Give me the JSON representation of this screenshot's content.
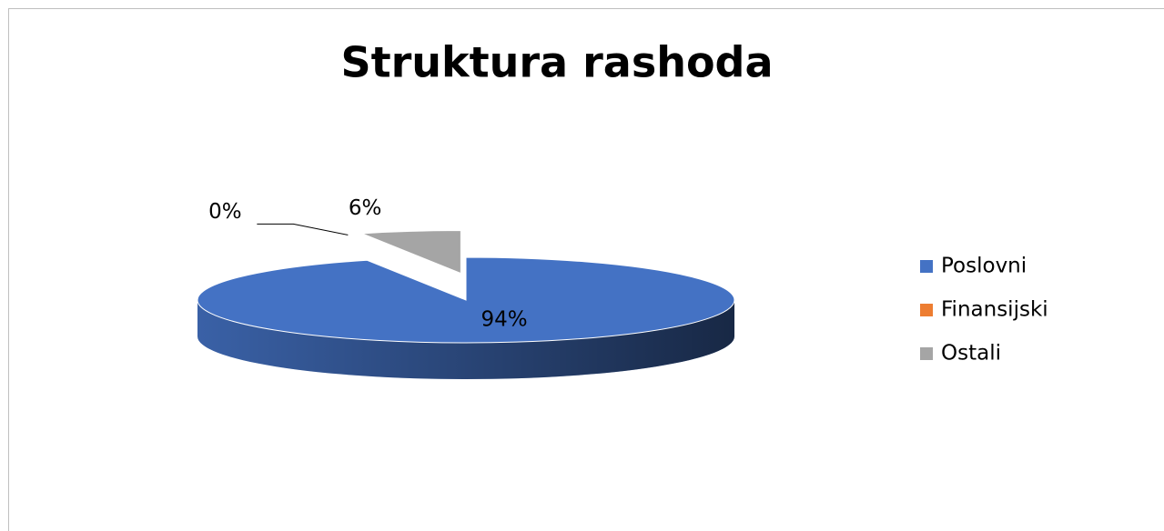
{
  "chart_data": {
    "type": "pie",
    "title": "Struktura rashoda",
    "categories": [
      "Poslovni",
      "Finansijski",
      "Ostali"
    ],
    "values": [
      94,
      0,
      6
    ],
    "value_labels": [
      "94%",
      "0%",
      "6%"
    ],
    "colors": [
      "#4472c4",
      "#ed7d31",
      "#a5a5a5"
    ],
    "legend": "right"
  }
}
